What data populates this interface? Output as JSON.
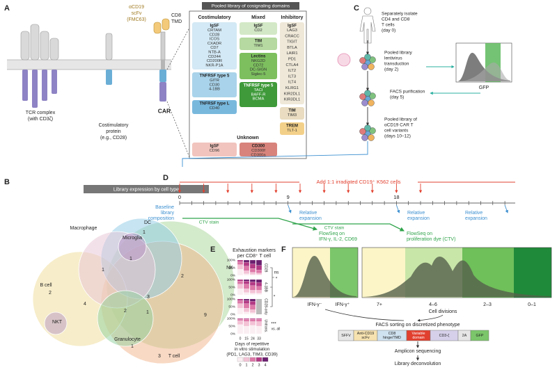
{
  "panel_labels": [
    "A",
    "B",
    "C",
    "D",
    "E",
    "F"
  ],
  "panel_a": {
    "scfv": [
      "αCD19",
      "scFv",
      "(FMC63)"
    ],
    "tmd": [
      "CD8",
      "TMD"
    ],
    "tcr": [
      "TCR complex",
      "(with CD3ζ)"
    ],
    "costim_protein": [
      "Costimulatory",
      "protein",
      "(e.g., CD28)"
    ],
    "car": "CAR",
    "library_title": "Pooled library of cosignaling domains",
    "columns": [
      {
        "name": "Costimulatory",
        "groups": [
          {
            "family": "IgSF",
            "members": [
              "CRTAM",
              "CD28",
              "ICOS",
              "CXADR",
              "CD7",
              "NTB-A",
              "CD244",
              "CD200R",
              "NKR-P1A"
            ]
          },
          {
            "family": "TNFRSF type 5",
            "members": [
              "GITR",
              "CD30",
              "4-1BB"
            ]
          },
          {
            "family": "TNFRSF type L",
            "members": [
              "CD40"
            ]
          }
        ]
      },
      {
        "name": "Mixed",
        "groups": [
          {
            "family": "IgSF",
            "members": [
              "CD2"
            ]
          },
          {
            "family": "TIM",
            "members": [
              "TIM1"
            ]
          },
          {
            "family": "Lectins",
            "members": [
              "NKG2D",
              "CD72",
              "DC-SIGN",
              "Siglec-5"
            ]
          },
          {
            "family": "TNFRSF type 5",
            "members": [
              "TACI",
              "BAFF-R",
              "BCMA"
            ]
          }
        ]
      },
      {
        "name": "Inhibitory",
        "groups": [
          {
            "family": "IgSF",
            "members": [
              "LAG3",
              "CRACC",
              "TIGIT",
              "BTLA",
              "LAIR1",
              "PD1",
              "CTLA4",
              "ILT2",
              "ILT3",
              "ILT4",
              "KLRG1",
              "KIR2DL1",
              "KIR3DL1"
            ]
          },
          {
            "family": "TIM",
            "members": [
              "TIM3"
            ]
          },
          {
            "family": "TREM",
            "members": [
              "TLT-1"
            ]
          }
        ]
      },
      {
        "name": "Unknown",
        "groups": [
          {
            "family": "IgSF",
            "members": [
              "CD96"
            ]
          },
          {
            "family": "CD300",
            "members": [
              "CD300f",
              "CD300a"
            ]
          }
        ]
      }
    ]
  },
  "panel_b": {
    "title": "Library expression by cell type",
    "cell_types": [
      "Macrophage",
      "DC",
      "Microglia",
      "NK",
      "B cell",
      "NKT",
      "Granulocyte",
      "T cell"
    ],
    "counts": [
      1,
      1,
      1,
      2,
      2,
      4,
      3,
      2,
      1,
      1,
      9,
      3
    ]
  },
  "panel_c": {
    "steps": [
      [
        "Separately isolate",
        "CD4 and CD8",
        "T cells",
        "(day 0)"
      ],
      [
        "Pooled library",
        "lentivirus",
        "transduction",
        "(day 2)"
      ],
      [
        "FACS purification",
        "(day 5)"
      ],
      [
        "Pooled library of",
        "αCD19 CAR T",
        "cell variants",
        "(days 10–12)"
      ]
    ],
    "histogram_axis": "GFP"
  },
  "panel_d": {
    "stimulation": "Add 1:1 irradiated CD19⁺ K562 cells",
    "days": [
      0,
      9,
      18
    ],
    "baseline": [
      "Baseline",
      "library",
      "composition"
    ],
    "readouts": [
      [
        "Relative",
        "expansion"
      ],
      [
        "Relative",
        "expansion"
      ],
      [
        "Relative",
        "expansion"
      ]
    ],
    "stains": [
      "CTV stain",
      "CTV stain"
    ],
    "flowseq": [
      [
        "FlowSeq on",
        "IFN-γ, IL-2, CD69"
      ],
      [
        "FlowSeq on",
        "proliferation dye (CTV)"
      ]
    ]
  },
  "panel_e": {
    "title": [
      "Exhaustion markers",
      "per CD8⁺ T cell"
    ],
    "yticks": [
      {
        "value": 100,
        "label": "100%"
      },
      {
        "value": 50,
        "label": "50%"
      },
      {
        "value": 0,
        "label": "0%"
      }
    ],
    "days": [
      0,
      15,
      24,
      33
    ],
    "groups": [
      {
        "name": "CD28",
        "stacks": [
          [
            40,
            30,
            20,
            10,
            0
          ],
          [
            10,
            20,
            30,
            25,
            15
          ],
          [
            5,
            15,
            25,
            30,
            25
          ],
          [
            5,
            10,
            20,
            30,
            35
          ]
        ]
      },
      {
        "name": "4-1BB",
        "stacks": [
          [
            40,
            30,
            20,
            10,
            0
          ],
          [
            15,
            25,
            30,
            20,
            10
          ],
          [
            10,
            20,
            30,
            25,
            15
          ],
          [
            10,
            20,
            25,
            25,
            20
          ]
        ]
      },
      {
        "name": "CD28-only",
        "stacks": [
          [
            40,
            30,
            20,
            10,
            0
          ],
          [
            15,
            25,
            30,
            20,
            10
          ],
          [
            10,
            20,
            30,
            25,
            15
          ],
          null
        ]
      },
      {
        "name": "Untrans.",
        "stacks": [
          [
            60,
            25,
            10,
            5,
            0
          ],
          [
            50,
            30,
            15,
            5,
            0
          ],
          [
            55,
            25,
            15,
            5,
            0
          ],
          [
            50,
            30,
            15,
            5,
            0
          ]
        ]
      }
    ],
    "significance": [
      "ns",
      "*",
      "*",
      "***",
      "vs. all"
    ],
    "xlabel": [
      "Days of repetitive",
      "in vitro stimulation",
      "(PD1, LAG3, TIM3, CD39)"
    ],
    "marker_counts": [
      0,
      1,
      2,
      3,
      4
    ],
    "colors": [
      "#fbeef2",
      "#f3c2d5",
      "#dd78a8",
      "#b33a85",
      "#6b1f6f"
    ]
  },
  "panel_f": {
    "ifn": [
      "IFN-γ⁻",
      "IFN-γ⁺"
    ],
    "division_bins": [
      "7+",
      "4–6",
      "2–3",
      "0–1"
    ],
    "division_label": "Cell divisions",
    "sorting": "FACS sorting on discretized phenotype",
    "construct": [
      [
        "SFFV"
      ],
      [
        "Anti-CD19",
        "scFv"
      ],
      [
        "CD8",
        "hinge/TMD"
      ],
      [
        "Variable",
        "domain"
      ],
      [
        "CD3-ζ"
      ],
      [
        "2A"
      ],
      [
        "GFP"
      ]
    ],
    "sequencing": "Amplicon sequencing",
    "deconvolution": "Library deconvolution"
  }
}
